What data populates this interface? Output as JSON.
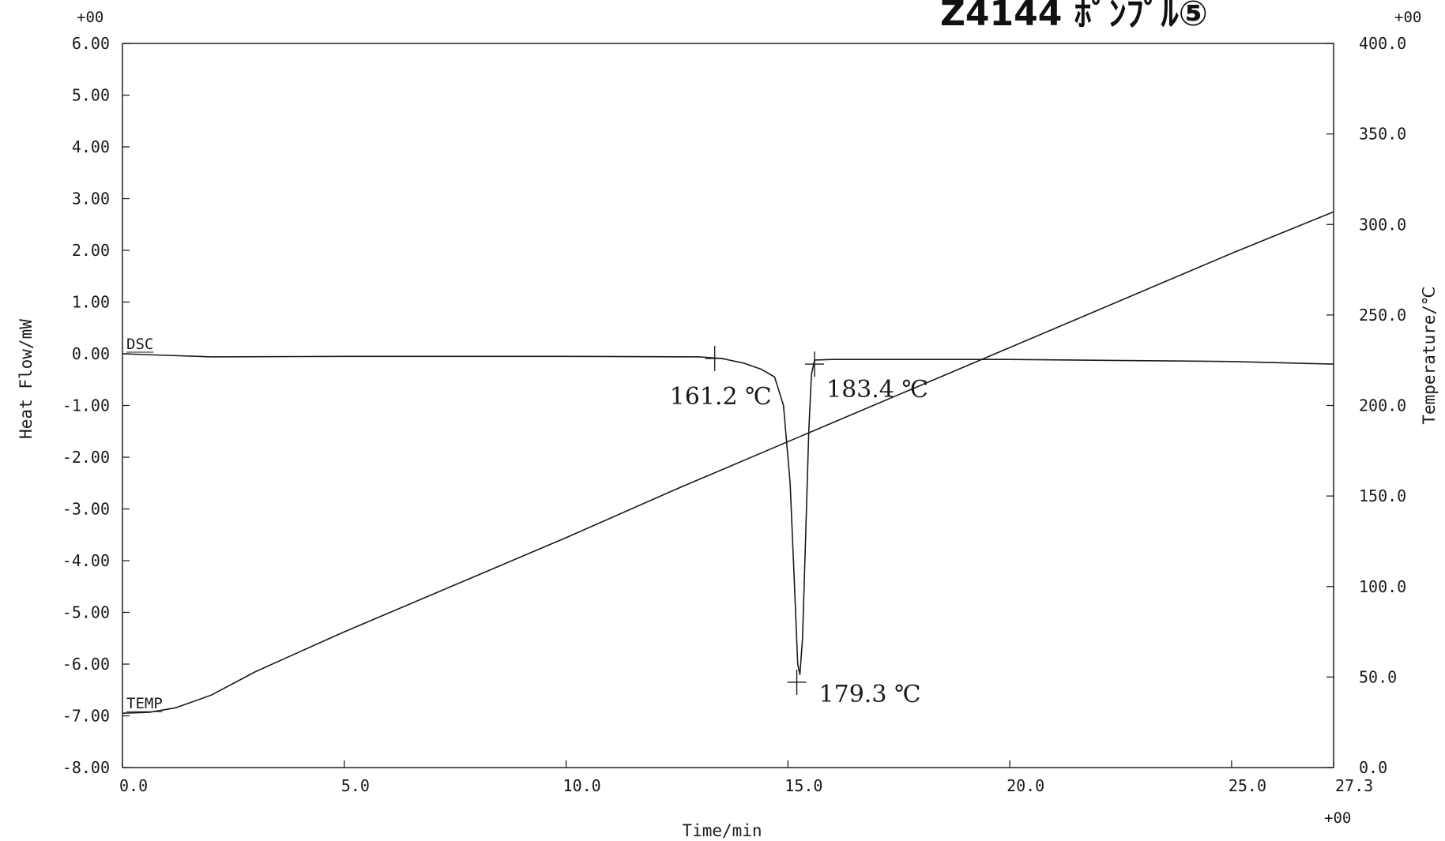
{
  "header": {
    "handwritten_note": "Z4144 ﾎﾟﾝﾌﾟﾙ⑤",
    "corner_top_left": "+00",
    "corner_top_right": "+00",
    "corner_bottom_right": "+00"
  },
  "chart_data": {
    "type": "line",
    "xlabel": "Time/min",
    "ylabel_left": "Heat Flow/mW",
    "ylabel_right": "Temperature/℃",
    "xlim": [
      0,
      27.3
    ],
    "ylim_left": [
      -8,
      6
    ],
    "ylim_right": [
      0,
      400
    ],
    "grid": false,
    "x_ticks": [
      0,
      5,
      10,
      15,
      20,
      25,
      27.3
    ],
    "x_tick_labels": [
      "0.0",
      "5.0",
      "10.0",
      "15.0",
      "20.0",
      "25.0",
      "27.3"
    ],
    "y_left_ticks": [
      6,
      5,
      4,
      3,
      2,
      1,
      0,
      -1,
      -2,
      -3,
      -4,
      -5,
      -6,
      -7,
      -8
    ],
    "y_left_tick_labels": [
      "6.00",
      "5.00",
      "4.00",
      "3.00",
      "2.00",
      "1.00",
      "0.00",
      "-1.00",
      "-2.00",
      "-3.00",
      "-4.00",
      "-5.00",
      "-6.00",
      "-7.00",
      "-8.00"
    ],
    "y_right_ticks": [
      400,
      350,
      300,
      250,
      200,
      150,
      100,
      50,
      0
    ],
    "y_right_tick_labels": [
      "400.0",
      "350.0",
      "300.0",
      "250.0",
      "200.0",
      "150.0",
      "100.0",
      "50.0",
      "0.0"
    ],
    "series": [
      {
        "name": "DSC",
        "axis": "left",
        "points": [
          [
            0,
            0.0
          ],
          [
            1,
            -0.03
          ],
          [
            2,
            -0.06
          ],
          [
            5,
            -0.05
          ],
          [
            10,
            -0.05
          ],
          [
            13,
            -0.06
          ],
          [
            13.5,
            -0.09
          ],
          [
            14,
            -0.18
          ],
          [
            14.4,
            -0.3
          ],
          [
            14.7,
            -0.45
          ],
          [
            14.9,
            -1.0
          ],
          [
            15.05,
            -2.5
          ],
          [
            15.15,
            -4.5
          ],
          [
            15.22,
            -6.0
          ],
          [
            15.27,
            -6.2
          ],
          [
            15.33,
            -5.5
          ],
          [
            15.4,
            -3.5
          ],
          [
            15.47,
            -1.5
          ],
          [
            15.53,
            -0.4
          ],
          [
            15.6,
            -0.12
          ],
          [
            16,
            -0.11
          ],
          [
            20,
            -0.11
          ],
          [
            25,
            -0.15
          ],
          [
            27.3,
            -0.2
          ]
        ]
      },
      {
        "name": "TEMP",
        "axis": "right",
        "points": [
          [
            0,
            30
          ],
          [
            0.6,
            30.5
          ],
          [
            1.2,
            33
          ],
          [
            2,
            40
          ],
          [
            3,
            53
          ],
          [
            4,
            64
          ],
          [
            5,
            75
          ],
          [
            7.5,
            101
          ],
          [
            10,
            127
          ],
          [
            12.5,
            154
          ],
          [
            15,
            180
          ],
          [
            17.5,
            206
          ],
          [
            20,
            232
          ],
          [
            22.5,
            258
          ],
          [
            25,
            284
          ],
          [
            27.3,
            307
          ]
        ]
      }
    ],
    "annotations": [
      {
        "label": "161.2 ℃",
        "x": 13.35,
        "y": -0.09
      },
      {
        "label": "183.4 ℃",
        "x": 15.6,
        "y": -0.2
      },
      {
        "label": "179.3 ℃",
        "x": 15.2,
        "y": -6.35
      }
    ]
  }
}
